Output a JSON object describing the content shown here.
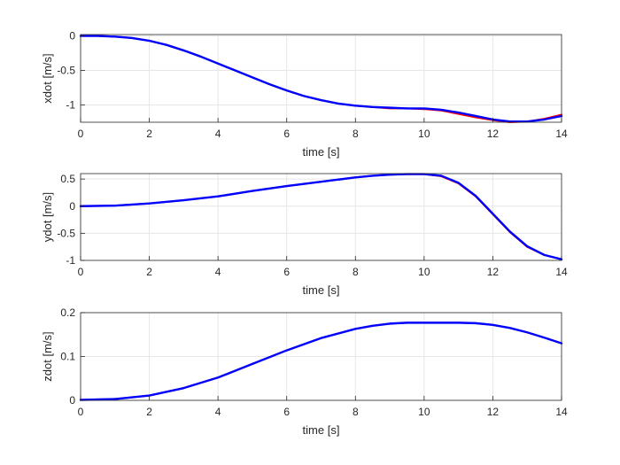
{
  "chart_data": [
    {
      "type": "line",
      "xlabel": "time [s]",
      "ylabel": "xdot [m/s]",
      "xlim": [
        0,
        14
      ],
      "ylim": [
        -1.25,
        0.02
      ],
      "xticks": [
        0,
        2,
        4,
        6,
        8,
        10,
        12,
        14
      ],
      "xtick_labels": [
        "0",
        "2",
        "4",
        "6",
        "8",
        "10",
        "12",
        "14"
      ],
      "yticks": [
        0,
        -0.5,
        -1
      ],
      "ytick_labels": [
        "0",
        "-0.5",
        "-1"
      ],
      "grid": true,
      "series": [
        {
          "color": "#ff0000",
          "x": [
            0,
            0.5,
            1,
            1.5,
            2,
            2.5,
            3,
            3.5,
            4,
            4.5,
            5,
            5.5,
            6,
            6.5,
            7,
            7.5,
            8,
            8.5,
            9,
            9.5,
            10,
            10.5,
            11,
            11.5,
            12,
            12.5,
            13,
            13.5,
            14
          ],
          "y": [
            0,
            0,
            -0.01,
            -0.03,
            -0.07,
            -0.13,
            -0.21,
            -0.3,
            -0.4,
            -0.5,
            -0.6,
            -0.7,
            -0.79,
            -0.87,
            -0.93,
            -0.98,
            -1.01,
            -1.03,
            -1.05,
            -1.05,
            -1.06,
            -1.08,
            -1.13,
            -1.18,
            -1.22,
            -1.25,
            -1.24,
            -1.2,
            -1.14
          ]
        },
        {
          "color": "#0000ff",
          "x": [
            0,
            0.5,
            1,
            1.5,
            2,
            2.5,
            3,
            3.5,
            4,
            4.5,
            5,
            5.5,
            6,
            6.5,
            7,
            7.5,
            8,
            8.5,
            9,
            9.5,
            10,
            10.5,
            11,
            11.5,
            12,
            12.5,
            13,
            13.5,
            14
          ],
          "y": [
            0,
            0,
            -0.01,
            -0.03,
            -0.07,
            -0.13,
            -0.21,
            -0.3,
            -0.4,
            -0.5,
            -0.6,
            -0.7,
            -0.79,
            -0.87,
            -0.93,
            -0.98,
            -1.01,
            -1.03,
            -1.04,
            -1.05,
            -1.05,
            -1.07,
            -1.11,
            -1.16,
            -1.21,
            -1.24,
            -1.24,
            -1.21,
            -1.16
          ]
        }
      ]
    },
    {
      "type": "line",
      "xlabel": "time [s]",
      "ylabel": "ydot [m/s]",
      "xlim": [
        0,
        14
      ],
      "ylim": [
        -1,
        0.6
      ],
      "xticks": [
        0,
        2,
        4,
        6,
        8,
        10,
        12,
        14
      ],
      "xtick_labels": [
        "0",
        "2",
        "4",
        "6",
        "8",
        "10",
        "12",
        "14"
      ],
      "yticks": [
        0.5,
        0,
        -0.5,
        -1
      ],
      "ytick_labels": [
        "0.5",
        "0",
        "-0.5",
        "-1"
      ],
      "grid": true,
      "series": [
        {
          "color": "#ff0000",
          "x": [
            0,
            1,
            2,
            3,
            4,
            5,
            6,
            7,
            8,
            8.5,
            9,
            9.5,
            10,
            10.5,
            11,
            11.5,
            12,
            12.5,
            13,
            13.5,
            14
          ],
          "y": [
            0,
            0.01,
            0.05,
            0.11,
            0.18,
            0.28,
            0.37,
            0.45,
            0.53,
            0.56,
            0.58,
            0.59,
            0.59,
            0.55,
            0.42,
            0.18,
            -0.15,
            -0.48,
            -0.75,
            -0.9,
            -0.98
          ]
        },
        {
          "color": "#0000ff",
          "x": [
            0,
            1,
            2,
            3,
            4,
            5,
            6,
            7,
            8,
            8.5,
            9,
            9.5,
            10,
            10.5,
            11,
            11.5,
            12,
            12.5,
            13,
            13.5,
            14
          ],
          "y": [
            0,
            0.01,
            0.05,
            0.11,
            0.18,
            0.28,
            0.37,
            0.45,
            0.53,
            0.56,
            0.58,
            0.59,
            0.59,
            0.56,
            0.43,
            0.19,
            -0.14,
            -0.47,
            -0.74,
            -0.9,
            -0.98
          ]
        }
      ]
    },
    {
      "type": "line",
      "xlabel": "time [s]",
      "ylabel": "zdot [m/s]",
      "xlim": [
        0,
        14
      ],
      "ylim": [
        0,
        0.2
      ],
      "xticks": [
        0,
        2,
        4,
        6,
        8,
        10,
        12,
        14
      ],
      "xtick_labels": [
        "0",
        "2",
        "4",
        "6",
        "8",
        "10",
        "12",
        "14"
      ],
      "yticks": [
        0.2,
        0.1,
        0
      ],
      "ytick_labels": [
        "0.2",
        "0.1",
        "0"
      ],
      "grid": true,
      "series": [
        {
          "color": "#ff0000",
          "x": [
            0,
            1,
            2,
            3,
            4,
            5,
            6,
            7,
            8,
            8.5,
            9,
            9.5,
            10,
            10.5,
            11,
            11.5,
            12,
            12.5,
            13,
            13.5,
            14
          ],
          "y": [
            0.001,
            0.003,
            0.011,
            0.028,
            0.052,
            0.083,
            0.114,
            0.142,
            0.163,
            0.17,
            0.175,
            0.177,
            0.177,
            0.177,
            0.177,
            0.176,
            0.172,
            0.165,
            0.155,
            0.143,
            0.13
          ]
        },
        {
          "color": "#0000ff",
          "x": [
            0,
            1,
            2,
            3,
            4,
            5,
            6,
            7,
            8,
            8.5,
            9,
            9.5,
            10,
            10.5,
            11,
            11.5,
            12,
            12.5,
            13,
            13.5,
            14
          ],
          "y": [
            0.001,
            0.003,
            0.011,
            0.028,
            0.052,
            0.083,
            0.114,
            0.142,
            0.163,
            0.17,
            0.175,
            0.177,
            0.177,
            0.177,
            0.177,
            0.176,
            0.172,
            0.165,
            0.155,
            0.143,
            0.13
          ]
        }
      ]
    }
  ]
}
